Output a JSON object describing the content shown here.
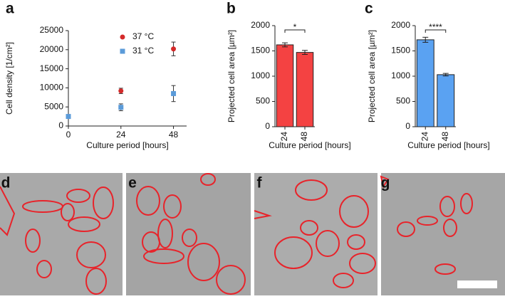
{
  "chart_data": [
    {
      "panel": "a",
      "type": "scatter",
      "x": [
        0,
        24,
        48
      ],
      "xlim": [
        0,
        54
      ],
      "xticks": [
        0,
        24,
        48
      ],
      "ylim": [
        0,
        25000
      ],
      "yticks": [
        0,
        5000,
        10000,
        15000,
        20000,
        25000
      ],
      "xlabel": "Culture period [hours]",
      "ylabel": "Cell density [1/cm²]",
      "series": [
        {
          "name": "37 °C",
          "color": "#d42a2a",
          "marker": "circle",
          "values": [
            2500,
            9200,
            20200
          ],
          "errors": [
            300,
            700,
            1800
          ]
        },
        {
          "name": "31 °C",
          "color": "#5b9bd9",
          "marker": "square",
          "values": [
            2500,
            4900,
            8500
          ],
          "errors": [
            300,
            900,
            2100
          ]
        }
      ]
    },
    {
      "panel": "b",
      "type": "bar",
      "categories": [
        "24",
        "48"
      ],
      "values": [
        1620,
        1470
      ],
      "errors": [
        40,
        40
      ],
      "color": "#f44242",
      "ylim": [
        0,
        2000
      ],
      "yticks": [
        0,
        500,
        1000,
        1500,
        2000
      ],
      "annotation": "*",
      "xlabel": "Culture period [hours]",
      "ylabel": "Projected cell area [µm²]"
    },
    {
      "panel": "c",
      "type": "bar",
      "categories": [
        "24",
        "48"
      ],
      "values": [
        1720,
        1030
      ],
      "errors": [
        50,
        25
      ],
      "color": "#5aa2f2",
      "ylim": [
        0,
        2000
      ],
      "yticks": [
        0,
        500,
        1000,
        1500,
        2000
      ],
      "annotation": "****",
      "xlabel": "Culture period [hours]",
      "ylabel": "Projected cell area [µm²]"
    }
  ],
  "images": [
    {
      "panel": "d"
    },
    {
      "panel": "e"
    },
    {
      "panel": "f"
    },
    {
      "panel": "g"
    }
  ]
}
